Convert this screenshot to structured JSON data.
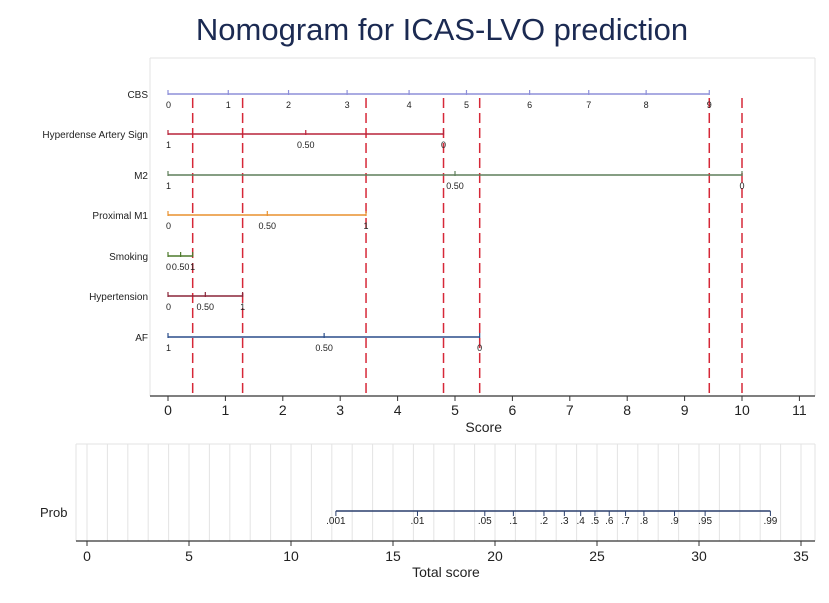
{
  "chart_data": {
    "type": "nomogram",
    "title": "Nomogram for ICAS-LVO prediction",
    "colors": {
      "title": "#1b2a52",
      "axis": "#333333",
      "grid": "#e3e3e3",
      "dashed": "#d62838",
      "CBS": "#8d8fd8",
      "Hyperdense Artery Sign": "#b8233a",
      "M2": "#5e7e5a",
      "Proximal M1": "#e8912e",
      "Smoking": "#4d7a2c",
      "Hypertension": "#8a2538",
      "AF": "#2a4d8a",
      "Prob": "#2a3f6d"
    },
    "score_axis": {
      "label": "Score",
      "range": [
        0,
        11
      ],
      "ticks": [
        0,
        1,
        2,
        3,
        4,
        5,
        6,
        7,
        8,
        9,
        10,
        11
      ],
      "tick_labels": [
        "0",
        "1",
        "2",
        "3",
        "4",
        "5",
        "6",
        "7",
        "8",
        "9",
        "10",
        "11"
      ]
    },
    "variables": [
      {
        "name": "CBS",
        "end_score": 9.43,
        "ticks": [
          {
            "label": "0",
            "score": 0.0
          },
          {
            "label": "1",
            "score": 1.05
          },
          {
            "label": "2",
            "score": 2.1
          },
          {
            "label": "3",
            "score": 3.12
          },
          {
            "label": "4",
            "score": 4.2
          },
          {
            "label": "5",
            "score": 5.2
          },
          {
            "label": "6",
            "score": 6.3
          },
          {
            "label": "7",
            "score": 7.33
          },
          {
            "label": "8",
            "score": 8.33
          },
          {
            "label": "9",
            "score": 9.43
          }
        ]
      },
      {
        "name": "Hyperdense Artery Sign",
        "end_score": 4.8,
        "ticks": [
          {
            "label": "1",
            "score": 0.0
          },
          {
            "label": "0.50",
            "score": 2.4
          },
          {
            "label": "0",
            "score": 4.8
          }
        ]
      },
      {
        "name": "M2",
        "end_score": 10.0,
        "ticks": [
          {
            "label": "1",
            "score": 0.0
          },
          {
            "label": "0.50",
            "score": 5.0
          },
          {
            "label": "0",
            "score": 10.0
          }
        ]
      },
      {
        "name": "Proximal M1",
        "end_score": 3.45,
        "ticks": [
          {
            "label": "0",
            "score": 0.0
          },
          {
            "label": "0.50",
            "score": 1.73
          },
          {
            "label": "1",
            "score": 3.45
          }
        ]
      },
      {
        "name": "Smoking",
        "end_score": 0.43,
        "ticks": [
          {
            "label": "0",
            "score": 0.0
          },
          {
            "label": "0.50",
            "score": 0.22
          },
          {
            "label": "1",
            "score": 0.43
          }
        ]
      },
      {
        "name": "Hypertension",
        "end_score": 1.3,
        "ticks": [
          {
            "label": "0",
            "score": 0.0
          },
          {
            "label": "0.50",
            "score": 0.65
          },
          {
            "label": "1",
            "score": 1.3
          }
        ]
      },
      {
        "name": "AF",
        "end_score": 5.43,
        "ticks": [
          {
            "label": "1",
            "score": 0.0
          },
          {
            "label": "0.50",
            "score": 2.72
          },
          {
            "label": "0",
            "score": 5.43
          }
        ]
      }
    ],
    "dashed_lines_at_score": [
      0.43,
      1.3,
      3.45,
      4.8,
      5.43,
      9.43,
      10.0
    ],
    "total_axis": {
      "label": "Total score",
      "range": [
        0,
        35
      ],
      "ticks": [
        0,
        5,
        10,
        15,
        20,
        25,
        30,
        35
      ],
      "tick_labels": [
        "0",
        "5",
        "10",
        "15",
        "20",
        "25",
        "30",
        "35"
      ],
      "grid_step": 1
    },
    "probability": {
      "label": "Prob",
      "start_total": 12.2,
      "end_total": 33.5,
      "ticks": [
        {
          "label": ".001",
          "total": 12.2
        },
        {
          "label": ".01",
          "total": 16.2
        },
        {
          "label": ".05",
          "total": 19.5
        },
        {
          "label": ".1",
          "total": 20.9
        },
        {
          "label": ".2",
          "total": 22.4
        },
        {
          "label": ".3",
          "total": 23.4
        },
        {
          "label": ".4",
          "total": 24.2
        },
        {
          "label": ".5",
          "total": 24.9
        },
        {
          "label": ".6",
          "total": 25.6
        },
        {
          "label": ".7",
          "total": 26.4
        },
        {
          "label": ".8",
          "total": 27.3
        },
        {
          "label": ".9",
          "total": 28.8
        },
        {
          "label": ".95",
          "total": 30.3
        },
        {
          "label": ".99",
          "total": 33.5
        }
      ]
    }
  }
}
